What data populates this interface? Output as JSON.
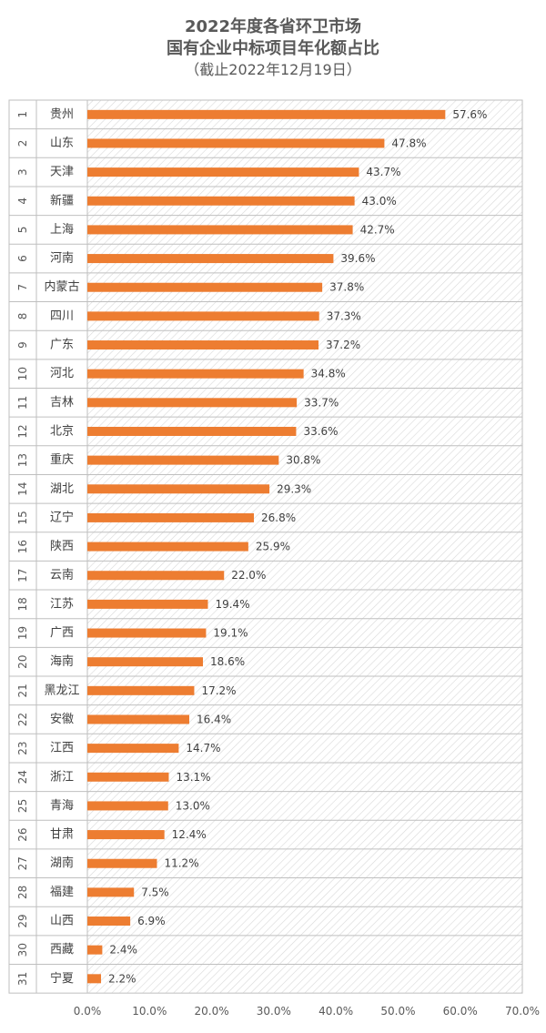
{
  "chart_data": {
    "type": "bar",
    "orientation": "horizontal",
    "title_lines": [
      "2022年度各省环卫市场",
      "国有企业中标项目年化额占比"
    ],
    "subtitle": "（截止2022年12月19日）",
    "xlabel": "",
    "ylabel": "",
    "xlim": [
      0,
      70
    ],
    "x_ticks": [
      "0.0%",
      "10.0%",
      "20.0%",
      "30.0%",
      "40.0%",
      "50.0%",
      "60.0%",
      "70.0%"
    ],
    "rank_labels": [
      "1",
      "2",
      "3",
      "4",
      "5",
      "6",
      "7",
      "8",
      "9",
      "10",
      "11",
      "12",
      "13",
      "14",
      "15",
      "16",
      "17",
      "18",
      "19",
      "20",
      "21",
      "22",
      "23",
      "24",
      "25",
      "26",
      "27",
      "28",
      "29",
      "30",
      "31"
    ],
    "categories": [
      "贵州",
      "山东",
      "天津",
      "新疆",
      "上海",
      "河南",
      "内蒙古",
      "四川",
      "广东",
      "河北",
      "吉林",
      "北京",
      "重庆",
      "湖北",
      "辽宁",
      "陕西",
      "云南",
      "江苏",
      "广西",
      "海南",
      "黑龙江",
      "安徽",
      "江西",
      "浙江",
      "青海",
      "甘肃",
      "湖南",
      "福建",
      "山西",
      "西藏",
      "宁夏"
    ],
    "values": [
      57.6,
      47.8,
      43.7,
      43.0,
      42.7,
      39.6,
      37.8,
      37.3,
      37.2,
      34.8,
      33.7,
      33.6,
      30.8,
      29.3,
      26.8,
      25.9,
      22.0,
      19.4,
      19.1,
      18.6,
      17.2,
      16.4,
      14.7,
      13.1,
      13.0,
      12.4,
      11.2,
      7.5,
      6.9,
      2.4,
      2.2
    ],
    "data_labels": [
      "57.6%",
      "47.8%",
      "43.7%",
      "43.0%",
      "42.7%",
      "39.6%",
      "37.8%",
      "37.3%",
      "37.2%",
      "34.8%",
      "33.7%",
      "33.6%",
      "30.8%",
      "29.3%",
      "26.8%",
      "25.9%",
      "22.0%",
      "19.4%",
      "19.1%",
      "18.6%",
      "17.2%",
      "16.4%",
      "14.7%",
      "13.1%",
      "13.0%",
      "12.4%",
      "11.2%",
      "7.5%",
      "6.9%",
      "2.4%",
      "2.2%"
    ],
    "grid": false,
    "legend": "none",
    "colors": {
      "bar": "#ED7D31",
      "hatch": "#D9D9D9",
      "text": "#595959",
      "border": "#BFBFBF"
    }
  }
}
